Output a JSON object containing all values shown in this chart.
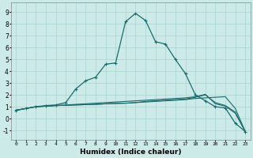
{
  "xlabel": "Humidex (Indice chaleur)",
  "xlim": [
    -0.5,
    23.5
  ],
  "ylim": [
    -1.8,
    9.8
  ],
  "xticks": [
    0,
    1,
    2,
    3,
    4,
    5,
    6,
    7,
    8,
    9,
    10,
    11,
    12,
    13,
    14,
    15,
    16,
    17,
    18,
    19,
    20,
    21,
    22,
    23
  ],
  "yticks": [
    -1,
    0,
    1,
    2,
    3,
    4,
    5,
    6,
    7,
    8,
    9
  ],
  "bg_color": "#cceae8",
  "grid_color": "#aad4d0",
  "line_color": "#1a6b6b",
  "series1_x": [
    0,
    1,
    2,
    3,
    4,
    5,
    6,
    7,
    8,
    9,
    10,
    11,
    12,
    13,
    14,
    15,
    16,
    17,
    18,
    19,
    20,
    21,
    22,
    23
  ],
  "series1_y": [
    0.7,
    0.85,
    1.0,
    1.1,
    1.15,
    1.35,
    2.5,
    3.2,
    3.5,
    4.6,
    4.7,
    8.2,
    8.9,
    8.3,
    6.5,
    6.3,
    5.0,
    3.8,
    2.0,
    1.5,
    1.0,
    0.9,
    -0.4,
    -1.1
  ],
  "series2_x": [
    0,
    1,
    2,
    3,
    4,
    5,
    6,
    7,
    8,
    9,
    10,
    11,
    12,
    13,
    14,
    15,
    16,
    17,
    18,
    19,
    20,
    21,
    22,
    23
  ],
  "series2_y": [
    0.7,
    0.85,
    1.0,
    1.05,
    1.1,
    1.15,
    1.2,
    1.25,
    1.3,
    1.35,
    1.4,
    1.45,
    1.5,
    1.55,
    1.6,
    1.65,
    1.7,
    1.75,
    1.85,
    2.05,
    1.25,
    1.05,
    0.45,
    -1.1
  ],
  "series3_x": [
    0,
    1,
    2,
    3,
    4,
    5,
    6,
    7,
    8,
    9,
    10,
    11,
    12,
    13,
    14,
    15,
    16,
    17,
    18,
    19,
    20,
    21,
    22,
    23
  ],
  "series3_y": [
    0.7,
    0.85,
    1.0,
    1.05,
    1.1,
    1.12,
    1.15,
    1.18,
    1.2,
    1.25,
    1.28,
    1.3,
    1.35,
    1.4,
    1.45,
    1.5,
    1.55,
    1.6,
    1.7,
    1.75,
    1.8,
    1.85,
    0.85,
    -1.1
  ],
  "series4_x": [
    0,
    1,
    2,
    3,
    4,
    5,
    6,
    7,
    8,
    9,
    10,
    11,
    12,
    13,
    14,
    15,
    16,
    17,
    18,
    19,
    20,
    21,
    22,
    23
  ],
  "series4_y": [
    0.7,
    0.85,
    1.0,
    1.05,
    1.1,
    1.12,
    1.15,
    1.18,
    1.2,
    1.25,
    1.28,
    1.3,
    1.35,
    1.45,
    1.5,
    1.55,
    1.6,
    1.65,
    1.8,
    2.0,
    1.35,
    1.1,
    0.55,
    -1.1
  ]
}
